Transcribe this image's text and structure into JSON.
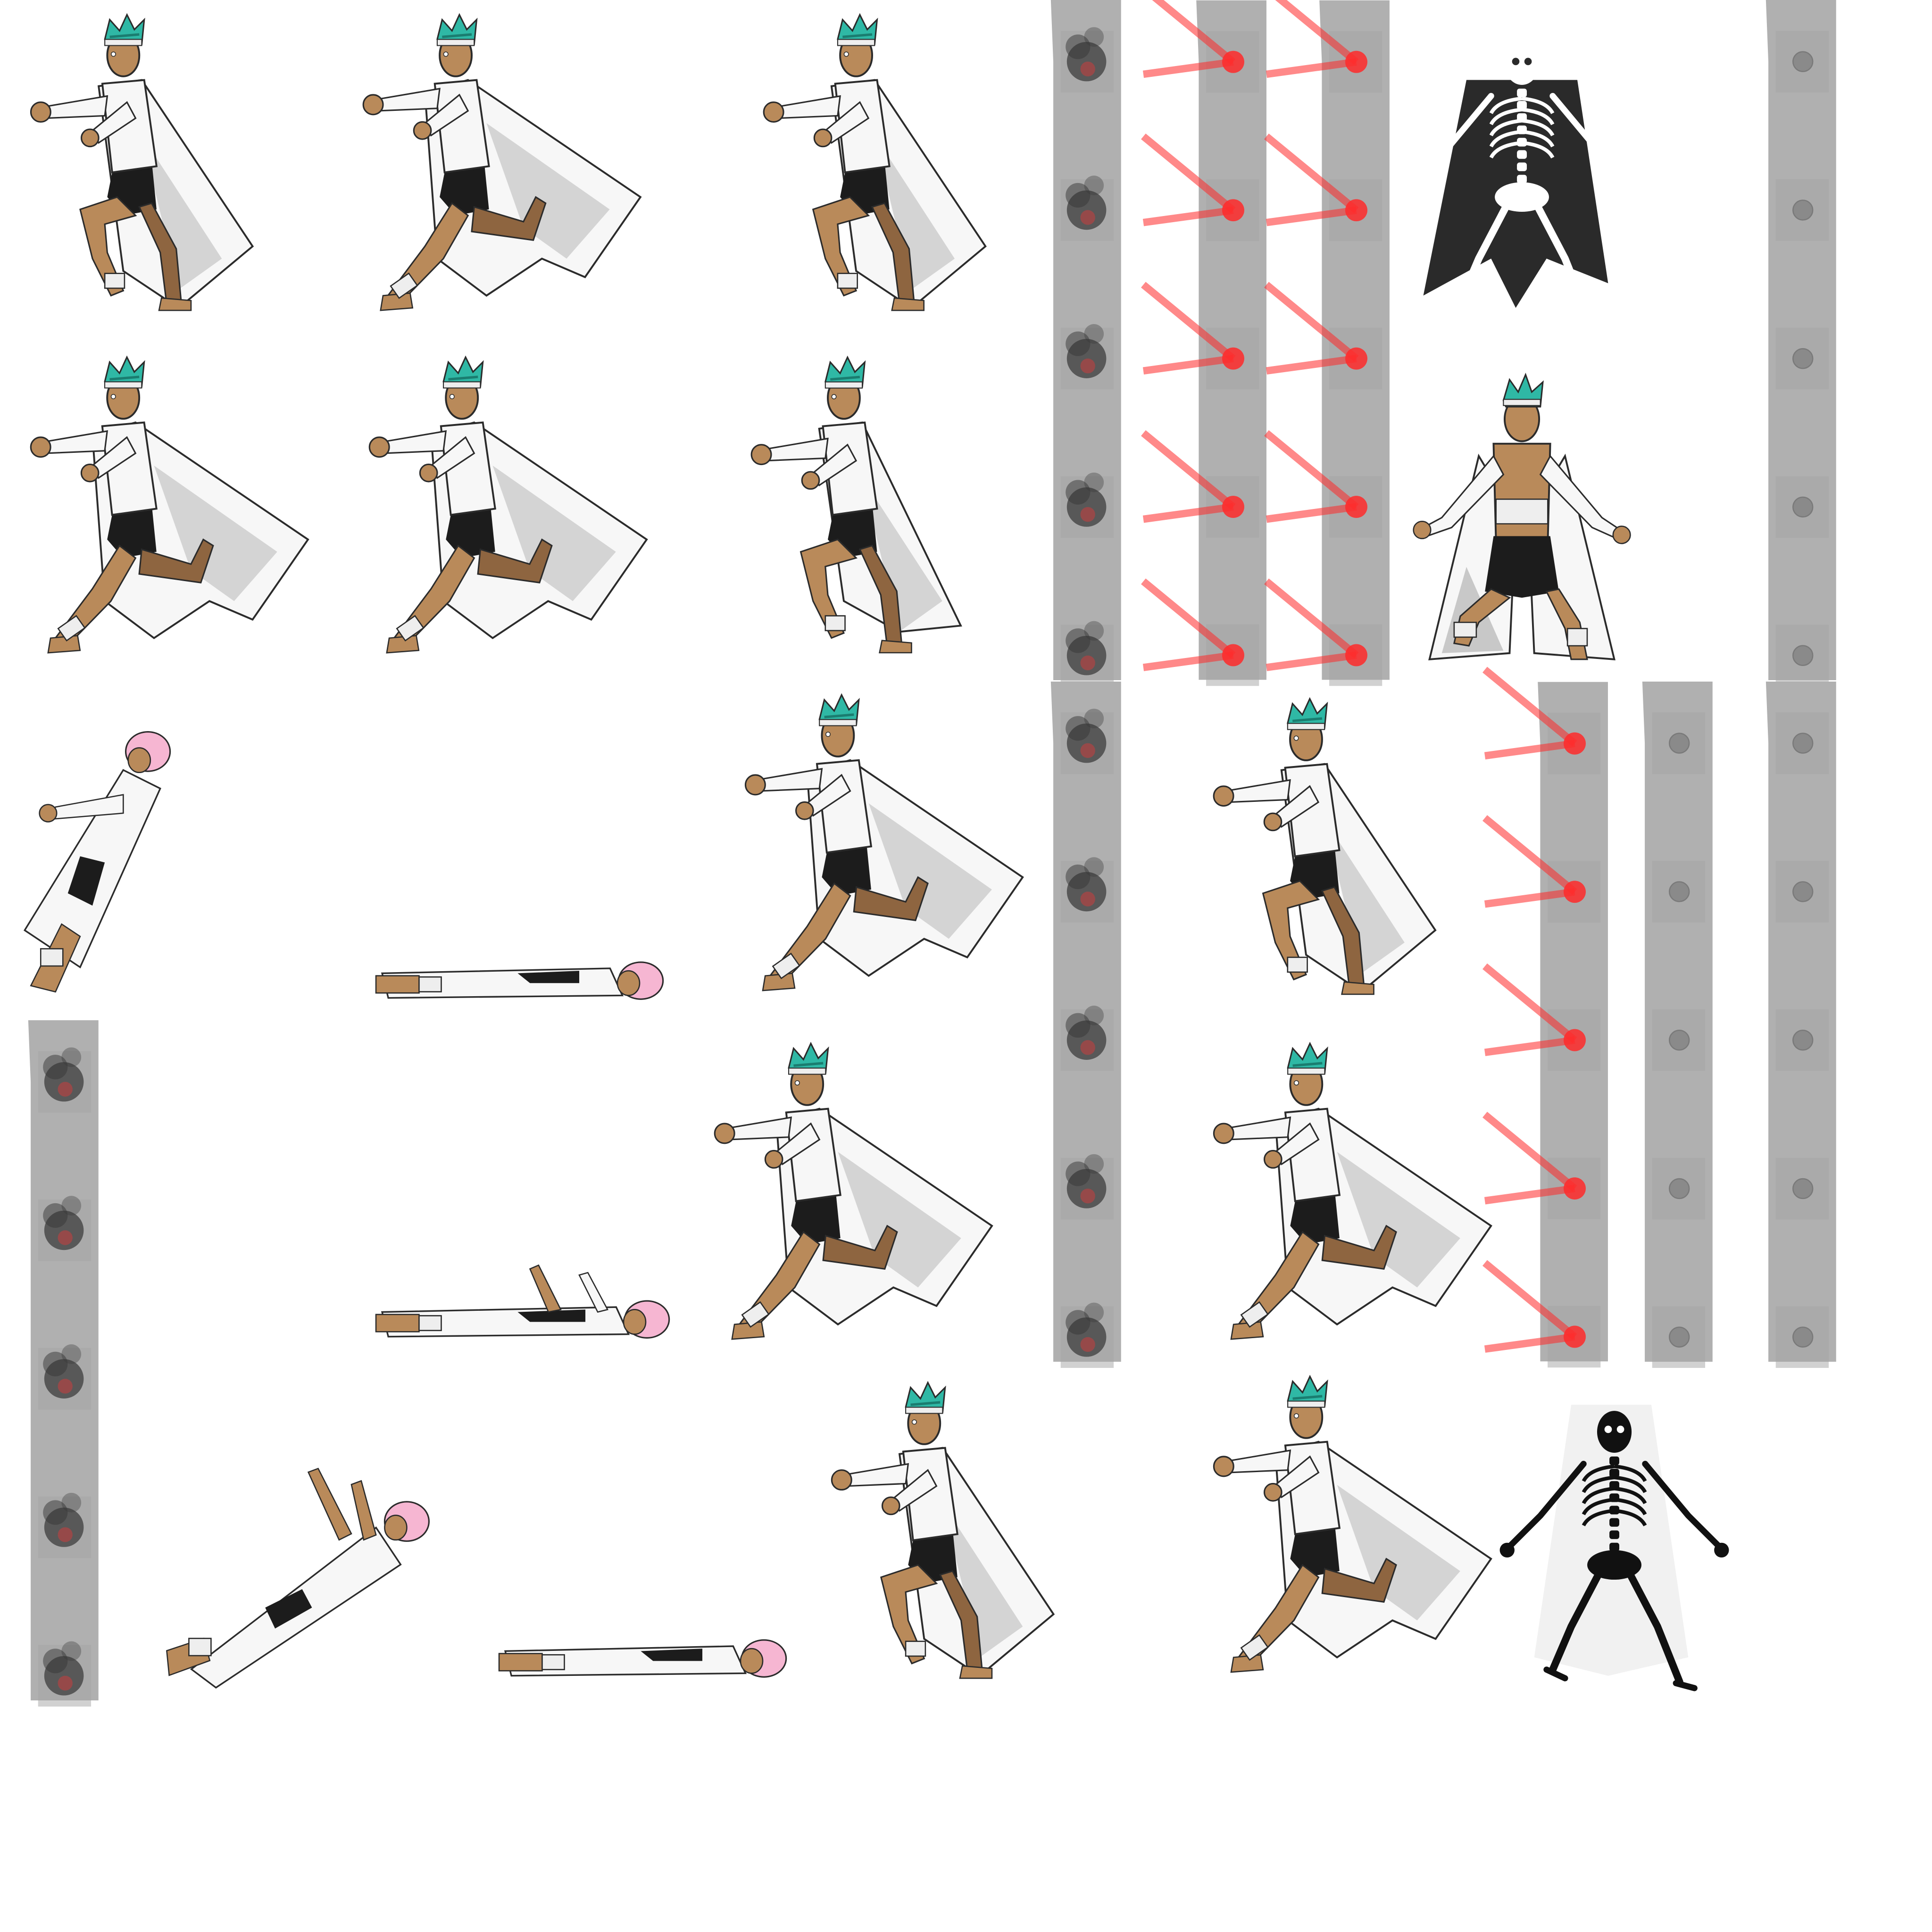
{
  "sheet": {
    "background": "#ffffff",
    "palette": {
      "hair": "#2fb8a5",
      "hair_dark": "#1a7d70",
      "skin": "#b98a5a",
      "skin_shadow": "#8e6540",
      "coat": "#f7f7f7",
      "coat_shadow": "#c8c8c8",
      "outline": "#2b2b2b",
      "shorts": "#1c1c1c",
      "bandage": "#eeeeee",
      "pink_hair": "#f6b6d2",
      "wall": "#b0b0b0",
      "wall_panel": "#a3a3a3",
      "laser": "#ff2a2a",
      "smoke": "#222222",
      "skeleton_bg": "#2a2a2a",
      "bone": "#ffffff"
    },
    "sprites": [
      {
        "name": "runner-frame-1",
        "kind": "runner",
        "pose": "run-crouch"
      },
      {
        "name": "runner-frame-2",
        "kind": "runner",
        "pose": "run-stride"
      },
      {
        "name": "runner-frame-3",
        "kind": "runner",
        "pose": "run-crouch"
      },
      {
        "name": "runner-frame-4",
        "kind": "runner",
        "pose": "run-stride"
      },
      {
        "name": "runner-frame-5",
        "kind": "runner",
        "pose": "run-stride"
      },
      {
        "name": "runner-frame-6",
        "kind": "runner",
        "pose": "run-upright"
      },
      {
        "name": "runner-frame-7",
        "kind": "runner",
        "pose": "run-stride"
      },
      {
        "name": "runner-frame-8",
        "kind": "runner",
        "pose": "run-crouch"
      },
      {
        "name": "runner-frame-9",
        "kind": "runner",
        "pose": "run-stride"
      },
      {
        "name": "runner-frame-10",
        "kind": "runner",
        "pose": "run-stride"
      },
      {
        "name": "runner-frame-11",
        "kind": "runner",
        "pose": "run-crouch"
      },
      {
        "name": "runner-frame-12",
        "kind": "runner",
        "pose": "run-stride"
      },
      {
        "name": "electrocuted-pose",
        "kind": "runner",
        "pose": "shock"
      },
      {
        "name": "fallen-frame-1",
        "kind": "fallen",
        "pose": "falling-back"
      },
      {
        "name": "fallen-frame-2",
        "kind": "fallen",
        "pose": "lying"
      },
      {
        "name": "fallen-frame-3",
        "kind": "fallen",
        "pose": "lying-arms-up"
      },
      {
        "name": "fallen-frame-4",
        "kind": "fallen",
        "pose": "falling-diagonal"
      },
      {
        "name": "fallen-frame-5",
        "kind": "fallen",
        "pose": "lying"
      },
      {
        "name": "xray-skeleton-dark",
        "kind": "skeleton",
        "variant": "dark"
      },
      {
        "name": "xray-skeleton-light",
        "kind": "skeleton",
        "variant": "light"
      },
      {
        "name": "wall-smoke-1",
        "kind": "wall",
        "state": "smoke"
      },
      {
        "name": "wall-smoke-2",
        "kind": "wall",
        "state": "smoke"
      },
      {
        "name": "wall-smoke-3",
        "kind": "wall",
        "state": "smoke"
      },
      {
        "name": "wall-laser-1",
        "kind": "wall",
        "state": "laser"
      },
      {
        "name": "wall-laser-2",
        "kind": "wall",
        "state": "laser"
      },
      {
        "name": "wall-laser-3",
        "kind": "wall",
        "state": "laser"
      },
      {
        "name": "wall-idle-1",
        "kind": "wall",
        "state": "idle"
      },
      {
        "name": "wall-idle-2",
        "kind": "wall",
        "state": "idle"
      },
      {
        "name": "wall-idle-3",
        "kind": "wall",
        "state": "idle"
      }
    ]
  }
}
